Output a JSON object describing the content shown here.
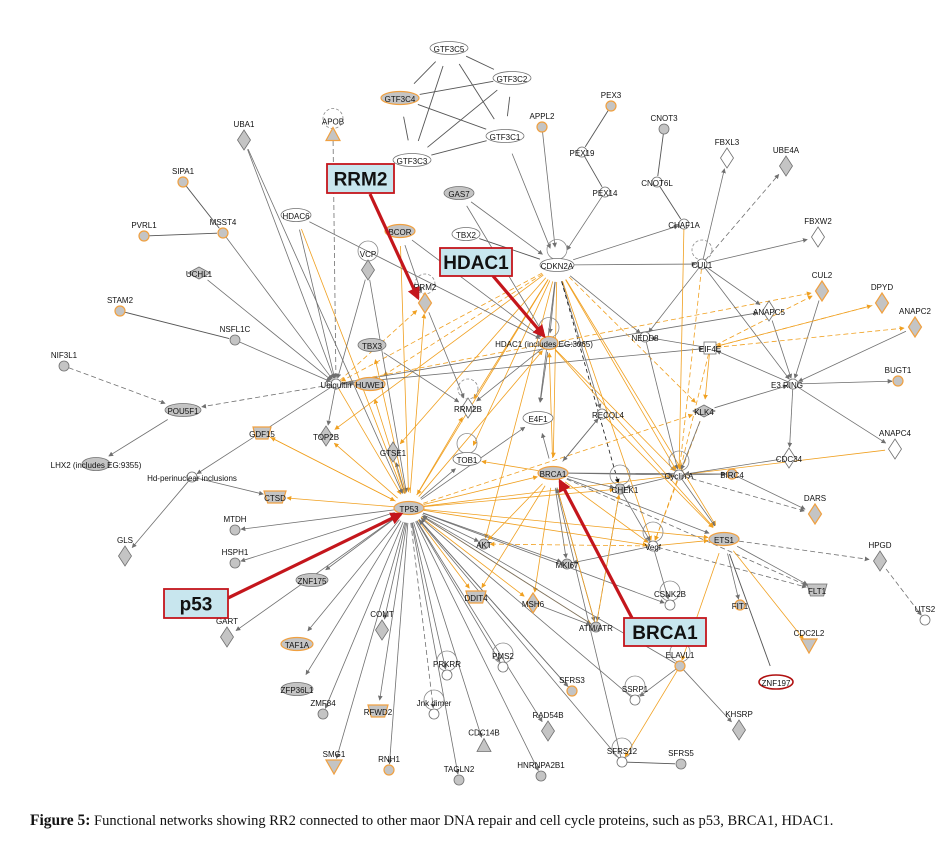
{
  "figure": {
    "label": "Figure 5:",
    "text": "Functional networks showing RR2 connected to other maor DNA repair and cell cycle proteins, such as p53, BRCA1, HDAC1."
  },
  "callouts": {
    "rrm2": "RRM2",
    "hdac1": "HDAC1",
    "p53": "p53",
    "brca1": "BRCA1"
  },
  "nodes": {
    "GTF3C5": "GTF3C5",
    "GTF3C2": "GTF3C2",
    "GTF3C4": "GTF3C4",
    "GTF3C1": "GTF3C1",
    "GTF3C3": "GTF3C3",
    "APOB": "APOB",
    "UBA1": "UBA1",
    "APPL2": "APPL2",
    "PEX3": "PEX3",
    "PEX19": "PEX19",
    "PEX14": "PEX14",
    "CNOT3": "CNOT3",
    "CNOT6L": "CNOT6L",
    "FBXL3": "FBXL3",
    "UBE4A": "UBE4A",
    "SIPA1": "SIPA1",
    "GAS7": "GAS7",
    "PVRL1": "PVRL1",
    "MSST4": "MSST4",
    "HDAC6": "HDAC6",
    "BCOR": "BCOR",
    "TBX2": "TBX2",
    "CDKN2A": "CDKN2A",
    "CHAF1A": "CHAF1A",
    "FBXW2": "FBXW2",
    "UCHL1": "UCHL1",
    "VCP": "VCP",
    "CUL1": "CUL1",
    "CUL2": "CUL2",
    "DPYD": "DPYD",
    "STAM2": "STAM2",
    "RRM2": "RRM2",
    "ANAPC5": "ANAPC5",
    "ANAPC2": "ANAPC2",
    "NSFL1C": "NSFL1C",
    "TBX3": "TBX3",
    "HDAC1INC": "HDAC1 (includes EG:3065)",
    "NEDD8": "NEDD8",
    "EIF4E": "EIF4E",
    "NIF3L1": "NIF3L1",
    "UBIQUITIN": "Ubiquitin",
    "HUWE1": "HUWE1",
    "E3RING": "E3 RING",
    "BUGT1": "BUGT1",
    "POU5F1": "POU5F1",
    "RRM2B": "RRM2B",
    "E4F1": "E4F1",
    "RECQL4": "RECQL4",
    "KLK4": "KLK4",
    "GDF15": "GDF15",
    "TOP2B": "TOP2B",
    "ANAPC4": "ANAPC4",
    "CDC34": "CDC34",
    "LHX2": "LHX2 (includes EG:9355)",
    "GTSE1": "GTSE1",
    "TOB1": "TOB1",
    "HDPERI": "Hd-perinuclear inclusions",
    "BRCA1N": "BRCA1",
    "CYCLINA": "Cyclin A",
    "BIRC4": "BIRC4",
    "CHEK1": "CHEK1",
    "CTSD": "CTSD",
    "TP53": "TP53",
    "DARS": "DARS",
    "MTDH": "MTDH",
    "ETS1": "ETS1",
    "HSPH1": "HSPH1",
    "AKT": "AKT",
    "MKI67": "MKI67",
    "VEGF": "Vegf",
    "HPGD": "HPGD",
    "GLS": "GLS",
    "ZNF175": "ZNF175",
    "DDIT4": "DDIT4",
    "MSH6": "MSH6",
    "CSNK2B": "CSNK2B",
    "FIT1": "FIT1",
    "FLT1": "FLT1",
    "GART": "GART",
    "TAF1A": "TAF1A",
    "COMT": "COMT",
    "ATMATR": "ATM/ATR",
    "CDC2L2": "CDC2L2",
    "UTS2": "UTS2",
    "PMS2": "PMS2",
    "PRKRR": "PRKRR",
    "ELAVL1": "ELAVL1",
    "ZNF197": "ZNF197",
    "ZFP36L1": "ZFP36L1",
    "SFRS3": "SFRS3",
    "SSRP1": "SSRP1",
    "ZMF84": "ZMF84",
    "RFWD2": "RFWD2",
    "JNKDIMER": "Jnk dimer",
    "RAD54B": "RAD54B",
    "KHSRP": "KHSRP",
    "CDC14B": "CDC14B",
    "SMG1": "SMG1",
    "RNH1": "RNH1",
    "TAGLN2": "TAGLN2",
    "HNRNPA2B1": "HNRNPA2B1",
    "SFRS12": "SFRS12",
    "SFRS5": "SFRS5"
  },
  "colors": {
    "orange_edge": "#f0a020",
    "grey_edge": "#707070",
    "highlight_arrow": "#c4161c",
    "callout_fill": "#c8e6ee",
    "callout_border": "#c4161c",
    "node_grey": "#c4c4c4",
    "node_orange_border": "#f0a040"
  }
}
